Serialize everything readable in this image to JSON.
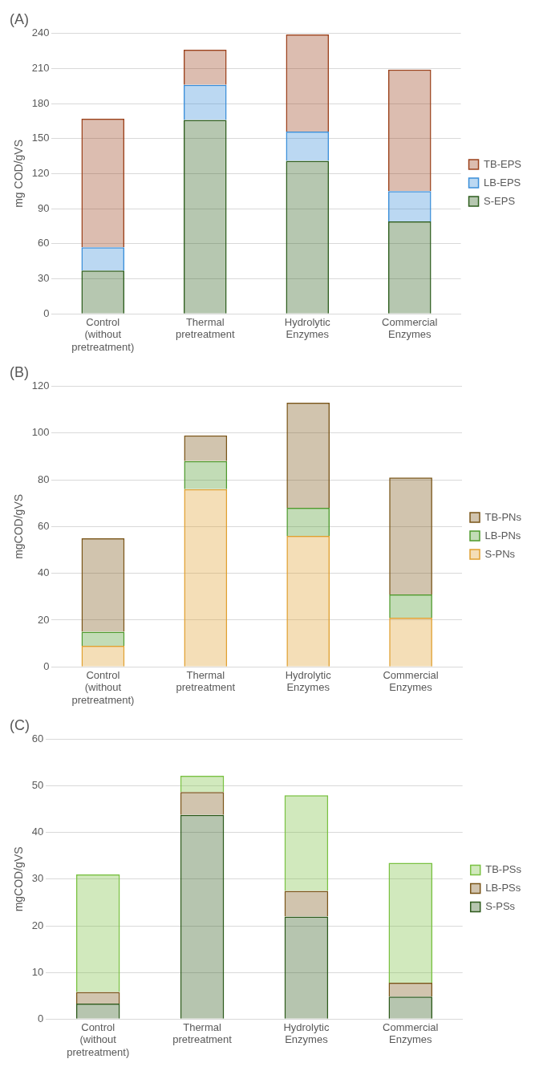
{
  "chart_data": [
    {
      "type": "bar",
      "title": "(A)",
      "ylabel": "mg COD/gVS",
      "categories": [
        "Control (without pretreatment)",
        "Thermal pretreatment",
        "Hydrolytic Enzymes",
        "Commercial Enzymes"
      ],
      "stacked": true,
      "ylim": [
        0,
        240
      ],
      "yticks": [
        0,
        30,
        60,
        90,
        120,
        150,
        180,
        210,
        240
      ],
      "grid": "y",
      "legend": "right",
      "series": [
        {
          "name": "S-EPS",
          "color": "#2e5e1e",
          "values": [
            37,
            166,
            131,
            79
          ]
        },
        {
          "name": "LB-EPS",
          "color": "#3b8fd9",
          "values": [
            20,
            30,
            25,
            26
          ]
        },
        {
          "name": "TB-EPS",
          "color": "#9c421c",
          "values": [
            110,
            30,
            83,
            104
          ]
        }
      ]
    },
    {
      "type": "bar",
      "title": "(B)",
      "ylabel": "mgCOD/gVS",
      "categories": [
        "Control (without pretreatment)",
        "Thermal pretreatment",
        "Hydrolytic Enzymes",
        "Commercial Enzymes"
      ],
      "stacked": true,
      "ylim": [
        0,
        120
      ],
      "yticks": [
        0,
        20,
        40,
        60,
        80,
        100,
        120
      ],
      "grid": "y",
      "legend": "right",
      "series": [
        {
          "name": "S-PNs",
          "color": "#e0a030",
          "values": [
            9,
            76,
            56,
            21
          ]
        },
        {
          "name": "LB-PNs",
          "color": "#4f9a2d",
          "values": [
            6,
            12,
            12,
            10
          ]
        },
        {
          "name": "TB-PNs",
          "color": "#7a5518",
          "values": [
            40,
            11,
            45,
            50
          ]
        }
      ]
    },
    {
      "type": "bar",
      "title": "(C)",
      "ylabel": "mgCOD/gVS",
      "categories": [
        "Control (without pretreatment)",
        "Thermal pretreatment",
        "Hydrolytic Enzymes",
        "Commercial Enzymes"
      ],
      "stacked": true,
      "ylim": [
        0,
        60
      ],
      "yticks": [
        0,
        10,
        20,
        30,
        40,
        50,
        60
      ],
      "grid": "y",
      "legend": "right",
      "series": [
        {
          "name": "S-PSs",
          "color": "#2d5a1b",
          "values": [
            3.3,
            43.8,
            22,
            4.8
          ]
        },
        {
          "name": "LB-PSs",
          "color": "#7a5518",
          "values": [
            2.5,
            4.9,
            5.5,
            3
          ]
        },
        {
          "name": "TB-PSs",
          "color": "#7ac142",
          "values": [
            25.2,
            3.5,
            20.5,
            25.7
          ]
        }
      ]
    }
  ]
}
